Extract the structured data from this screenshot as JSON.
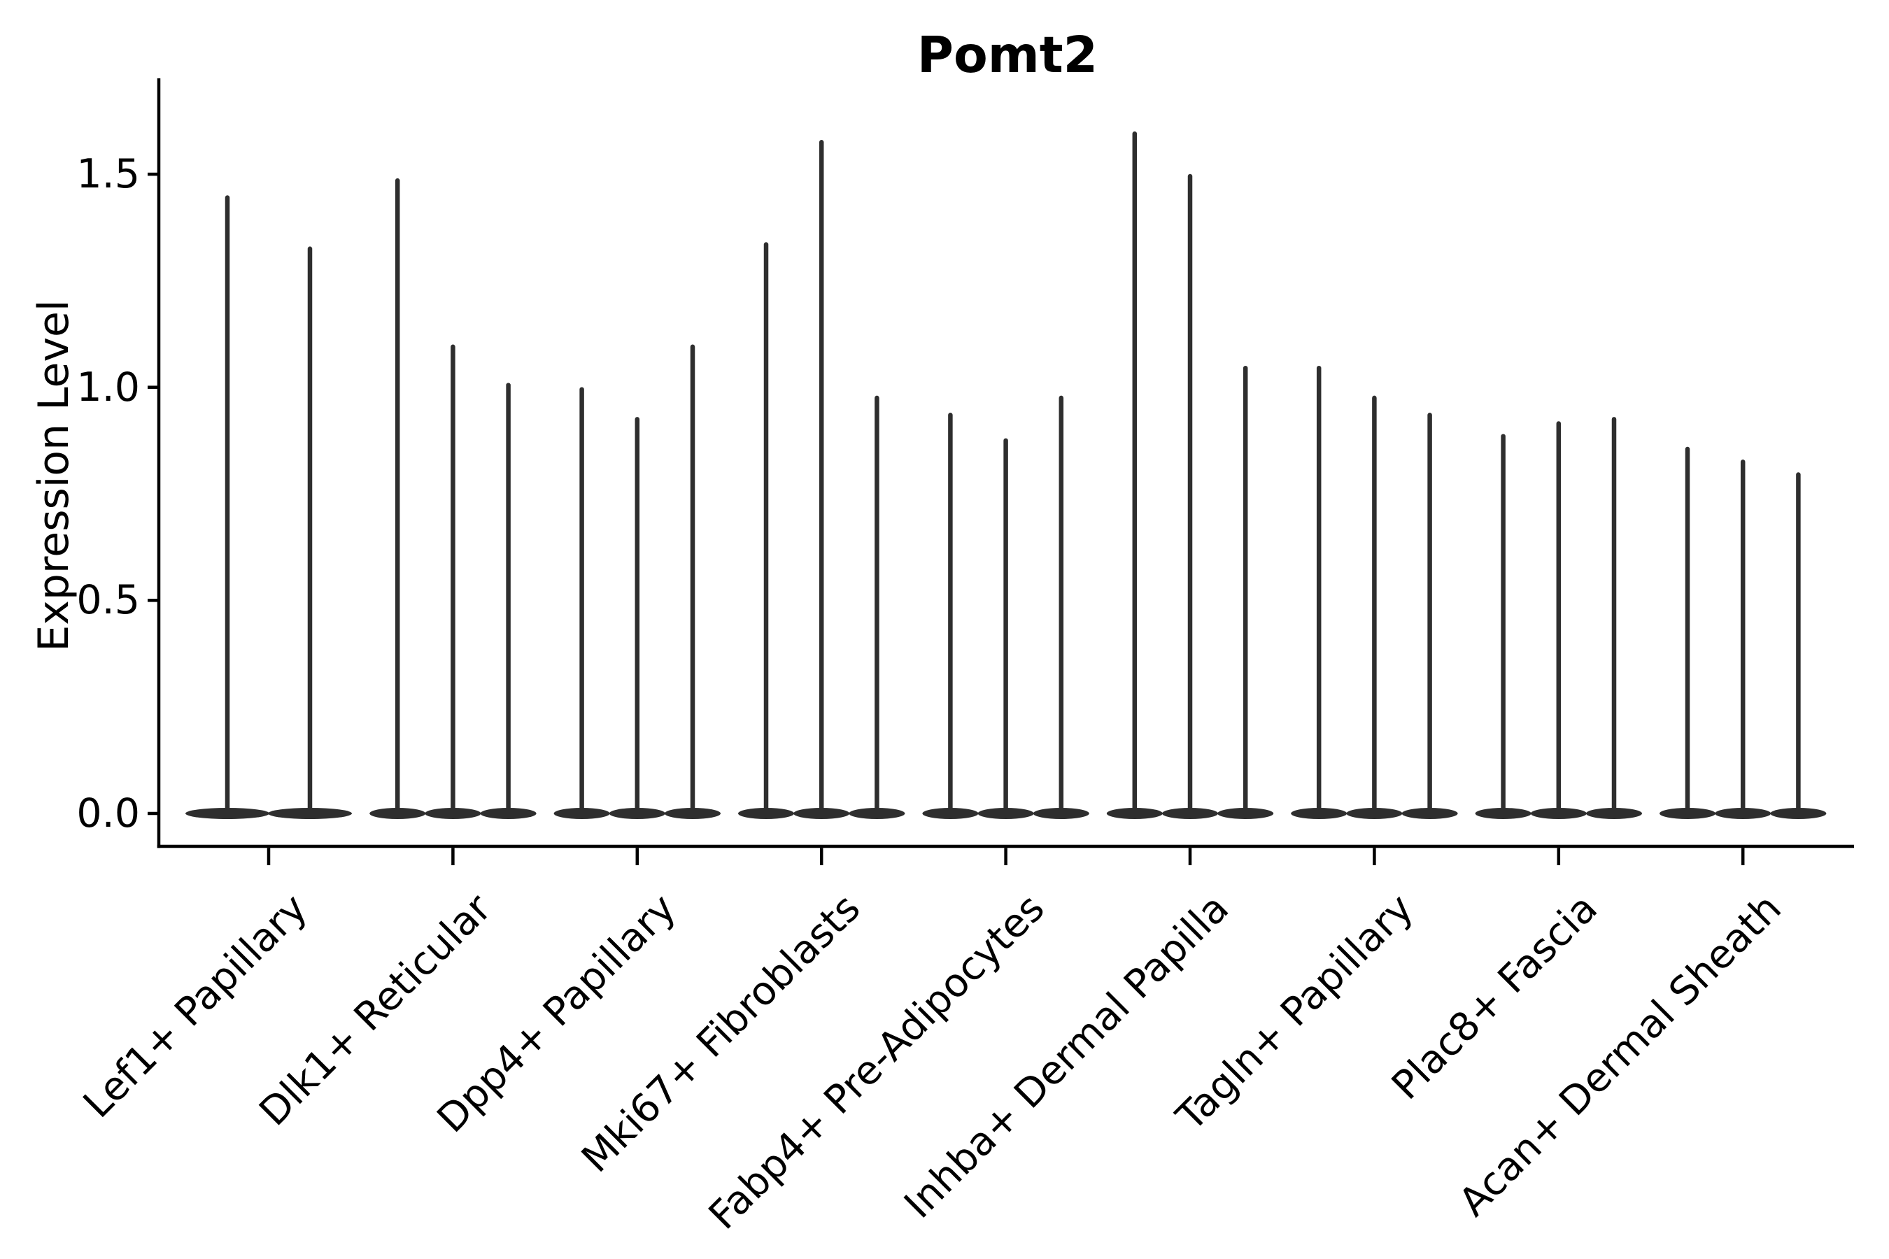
{
  "chart_data": {
    "type": "violin",
    "title": "Pomt2",
    "ylabel": "Expression Level",
    "xlabel": "",
    "ytick_labels": [
      "0.0",
      "0.5",
      "1.0",
      "1.5"
    ],
    "ytick_values": [
      0.0,
      0.5,
      1.0,
      1.5
    ],
    "ylim": [
      -0.08,
      1.72
    ],
    "grid": false,
    "legend": "none",
    "style_note": "Each violin is a near-zero expression distribution: wide flat bulge at 0 with a thin spike rising to the max value.",
    "colors": {
      "violin": "#2e2e2e",
      "axis": "#000000",
      "text": "#000000"
    },
    "groups": [
      {
        "label": "Lef1+ Papillary",
        "violin_max_values": [
          1.45,
          1.33
        ]
      },
      {
        "label": "Dlk1+ Reticular",
        "violin_max_values": [
          1.49,
          1.1,
          1.01
        ]
      },
      {
        "label": "Dpp4+ Papillary",
        "violin_max_values": [
          1.0,
          0.93,
          1.1
        ]
      },
      {
        "label": "Mki67+ Fibroblasts",
        "violin_max_values": [
          1.34,
          1.58,
          0.98
        ]
      },
      {
        "label": "Fabp4+ Pre-Adipocytes",
        "violin_max_values": [
          0.94,
          0.88,
          0.98
        ]
      },
      {
        "label": "Inhba+ Dermal Papilla",
        "violin_max_values": [
          1.6,
          1.5,
          1.05
        ]
      },
      {
        "label": "Tagln+ Papillary",
        "violin_max_values": [
          1.05,
          0.98,
          0.94
        ]
      },
      {
        "label": "Plac8+ Fascia",
        "violin_max_values": [
          0.89,
          0.92,
          0.93
        ]
      },
      {
        "label": "Acan+ Dermal Sheath",
        "violin_max_values": [
          0.86,
          0.83,
          0.8
        ]
      }
    ]
  }
}
